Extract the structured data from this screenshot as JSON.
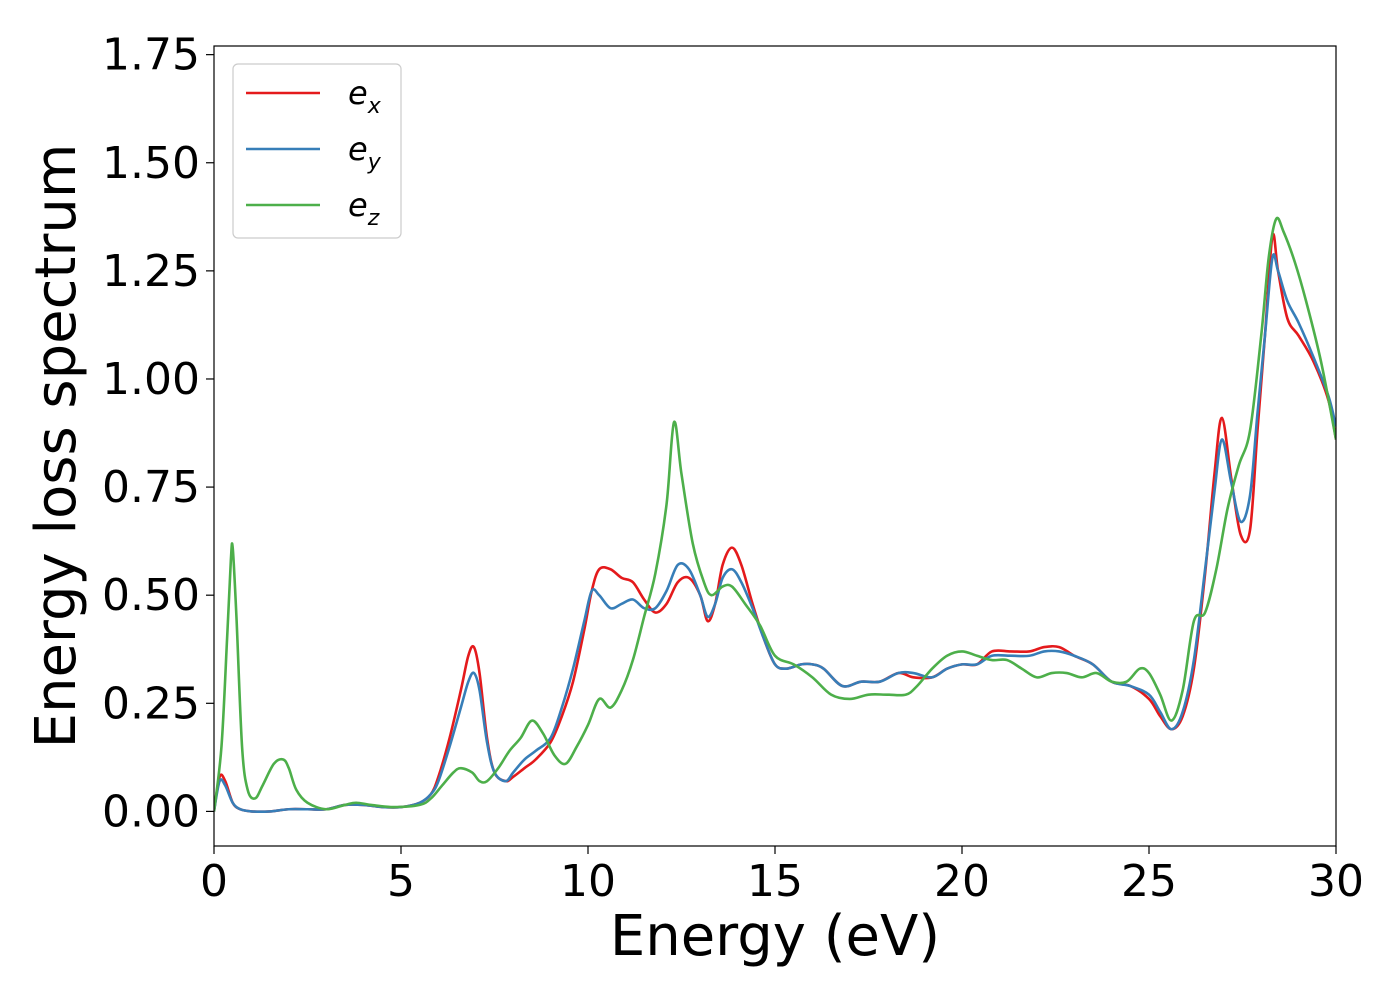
{
  "chart_data": {
    "type": "line",
    "title": "",
    "xlabel": "Energy (eV)",
    "ylabel": "Energy loss spectrum",
    "xlim": [
      0,
      30
    ],
    "ylim": [
      -0.08,
      1.77
    ],
    "xticks": [
      0,
      5,
      10,
      15,
      20,
      25,
      30
    ],
    "xtick_labels": [
      "0",
      "5",
      "10",
      "15",
      "20",
      "25",
      "30"
    ],
    "yticks": [
      0,
      0.25,
      0.5,
      0.75,
      1.0,
      1.25,
      1.5,
      1.75
    ],
    "ytick_labels": [
      "0.00",
      "0.25",
      "0.50",
      "0.75",
      "1.00",
      "1.25",
      "1.50",
      "1.75"
    ],
    "grid": false,
    "legend_position": "top-left",
    "series": [
      {
        "name": "e_x",
        "legend_base": "e",
        "legend_sub": "x",
        "color": "#e41a1c",
        "x": [
          0,
          0.15,
          0.3,
          0.5,
          0.7,
          1.0,
          1.5,
          2.0,
          2.5,
          3.0,
          3.5,
          4.0,
          4.5,
          5.0,
          5.5,
          5.8,
          6.0,
          6.3,
          6.6,
          6.8,
          6.95,
          7.1,
          7.3,
          7.5,
          7.8,
          8.0,
          8.3,
          8.6,
          9.0,
          9.3,
          9.6,
          9.9,
          10.1,
          10.3,
          10.6,
          10.9,
          11.2,
          11.5,
          11.8,
          12.1,
          12.4,
          12.7,
          13.0,
          13.2,
          13.4,
          13.6,
          13.85,
          14.1,
          14.4,
          14.7,
          15.0,
          15.3,
          15.7,
          16.0,
          16.3,
          16.8,
          17.3,
          17.8,
          18.3,
          18.7,
          19.2,
          19.6,
          20.0,
          20.4,
          20.8,
          21.3,
          21.8,
          22.2,
          22.6,
          23.0,
          23.5,
          24.0,
          24.5,
          25.0,
          25.3,
          25.6,
          25.9,
          26.2,
          26.5,
          26.75,
          26.95,
          27.2,
          27.45,
          27.7,
          27.9,
          28.1,
          28.3,
          28.45,
          28.7,
          29.0,
          29.4,
          29.8,
          30.0
        ],
        "y": [
          0.0,
          0.08,
          0.07,
          0.02,
          0.005,
          0.0,
          0.0,
          0.005,
          0.005,
          0.005,
          0.015,
          0.015,
          0.01,
          0.01,
          0.02,
          0.04,
          0.08,
          0.17,
          0.28,
          0.36,
          0.38,
          0.32,
          0.17,
          0.09,
          0.07,
          0.08,
          0.1,
          0.12,
          0.16,
          0.22,
          0.3,
          0.42,
          0.51,
          0.56,
          0.56,
          0.54,
          0.53,
          0.49,
          0.46,
          0.48,
          0.53,
          0.54,
          0.5,
          0.44,
          0.48,
          0.57,
          0.61,
          0.57,
          0.48,
          0.4,
          0.34,
          0.33,
          0.34,
          0.34,
          0.33,
          0.29,
          0.3,
          0.3,
          0.32,
          0.31,
          0.31,
          0.33,
          0.34,
          0.34,
          0.37,
          0.37,
          0.37,
          0.38,
          0.38,
          0.36,
          0.34,
          0.3,
          0.29,
          0.26,
          0.22,
          0.19,
          0.22,
          0.33,
          0.55,
          0.78,
          0.91,
          0.77,
          0.64,
          0.65,
          0.88,
          1.1,
          1.33,
          1.25,
          1.14,
          1.1,
          1.04,
          0.95,
          0.86
        ]
      },
      {
        "name": "e_y",
        "legend_base": "e",
        "legend_sub": "y",
        "color": "#377eb8",
        "x": [
          0,
          0.15,
          0.3,
          0.5,
          0.7,
          1.0,
          1.5,
          2.0,
          2.5,
          3.0,
          3.5,
          4.0,
          4.5,
          5.0,
          5.5,
          5.8,
          6.0,
          6.3,
          6.6,
          6.8,
          6.95,
          7.1,
          7.3,
          7.5,
          7.8,
          8.0,
          8.3,
          8.6,
          9.0,
          9.3,
          9.6,
          9.9,
          10.1,
          10.3,
          10.6,
          10.9,
          11.2,
          11.5,
          11.8,
          12.1,
          12.4,
          12.7,
          13.0,
          13.2,
          13.4,
          13.6,
          13.85,
          14.1,
          14.4,
          14.7,
          15.0,
          15.3,
          15.7,
          16.0,
          16.3,
          16.8,
          17.3,
          17.8,
          18.3,
          18.7,
          19.2,
          19.6,
          20.0,
          20.4,
          20.8,
          21.3,
          21.8,
          22.2,
          22.6,
          23.0,
          23.5,
          24.0,
          24.5,
          25.0,
          25.3,
          25.6,
          25.9,
          26.2,
          26.5,
          26.75,
          26.95,
          27.2,
          27.45,
          27.7,
          27.9,
          28.1,
          28.3,
          28.45,
          28.7,
          29.0,
          29.4,
          29.8,
          30.0
        ],
        "y": [
          0.0,
          0.07,
          0.06,
          0.02,
          0.005,
          0.0,
          0.0,
          0.005,
          0.005,
          0.005,
          0.015,
          0.015,
          0.01,
          0.01,
          0.02,
          0.04,
          0.07,
          0.15,
          0.24,
          0.3,
          0.32,
          0.28,
          0.16,
          0.09,
          0.07,
          0.09,
          0.12,
          0.14,
          0.17,
          0.24,
          0.33,
          0.44,
          0.51,
          0.5,
          0.47,
          0.48,
          0.49,
          0.47,
          0.47,
          0.51,
          0.57,
          0.56,
          0.5,
          0.45,
          0.48,
          0.54,
          0.56,
          0.53,
          0.47,
          0.4,
          0.34,
          0.33,
          0.34,
          0.34,
          0.33,
          0.29,
          0.3,
          0.3,
          0.32,
          0.32,
          0.31,
          0.33,
          0.34,
          0.34,
          0.36,
          0.36,
          0.36,
          0.37,
          0.37,
          0.36,
          0.34,
          0.3,
          0.29,
          0.27,
          0.23,
          0.19,
          0.23,
          0.35,
          0.56,
          0.74,
          0.86,
          0.76,
          0.67,
          0.73,
          0.92,
          1.1,
          1.28,
          1.25,
          1.18,
          1.13,
          1.05,
          0.96,
          0.89
        ]
      },
      {
        "name": "e_z",
        "legend_base": "e",
        "legend_sub": "z",
        "color": "#4daf4a",
        "x": [
          0,
          0.2,
          0.35,
          0.45,
          0.5,
          0.6,
          0.75,
          0.9,
          1.1,
          1.3,
          1.6,
          1.85,
          2.0,
          2.2,
          2.5,
          3.0,
          3.5,
          3.8,
          4.2,
          4.8,
          5.5,
          5.8,
          6.1,
          6.4,
          6.6,
          6.9,
          7.1,
          7.3,
          7.6,
          7.9,
          8.2,
          8.5,
          8.8,
          9.1,
          9.4,
          9.7,
          10.0,
          10.3,
          10.6,
          10.9,
          11.2,
          11.5,
          11.8,
          12.1,
          12.3,
          12.5,
          12.8,
          13.1,
          13.3,
          13.6,
          13.85,
          14.2,
          14.6,
          15.0,
          15.5,
          16.0,
          16.5,
          17.0,
          17.5,
          18.0,
          18.5,
          18.8,
          19.2,
          19.6,
          20.0,
          20.4,
          20.8,
          21.2,
          21.6,
          22.0,
          22.4,
          22.8,
          23.2,
          23.6,
          24.0,
          24.4,
          24.75,
          25.0,
          25.3,
          25.6,
          25.9,
          26.2,
          26.5,
          26.8,
          27.1,
          27.4,
          27.7,
          28.0,
          28.2,
          28.4,
          28.6,
          28.9,
          29.2,
          29.6,
          30.0
        ],
        "y": [
          0.0,
          0.15,
          0.4,
          0.58,
          0.61,
          0.45,
          0.15,
          0.05,
          0.03,
          0.06,
          0.11,
          0.12,
          0.1,
          0.05,
          0.02,
          0.005,
          0.015,
          0.02,
          0.015,
          0.01,
          0.015,
          0.03,
          0.06,
          0.09,
          0.1,
          0.09,
          0.07,
          0.07,
          0.1,
          0.14,
          0.17,
          0.21,
          0.18,
          0.13,
          0.11,
          0.15,
          0.2,
          0.26,
          0.24,
          0.28,
          0.35,
          0.45,
          0.55,
          0.71,
          0.9,
          0.78,
          0.62,
          0.53,
          0.5,
          0.52,
          0.52,
          0.48,
          0.43,
          0.36,
          0.34,
          0.31,
          0.27,
          0.26,
          0.27,
          0.27,
          0.27,
          0.29,
          0.33,
          0.36,
          0.37,
          0.36,
          0.35,
          0.35,
          0.33,
          0.31,
          0.32,
          0.32,
          0.31,
          0.32,
          0.3,
          0.3,
          0.33,
          0.32,
          0.27,
          0.21,
          0.28,
          0.44,
          0.46,
          0.56,
          0.7,
          0.8,
          0.88,
          1.1,
          1.28,
          1.37,
          1.34,
          1.27,
          1.18,
          1.04,
          0.86
        ]
      }
    ]
  }
}
